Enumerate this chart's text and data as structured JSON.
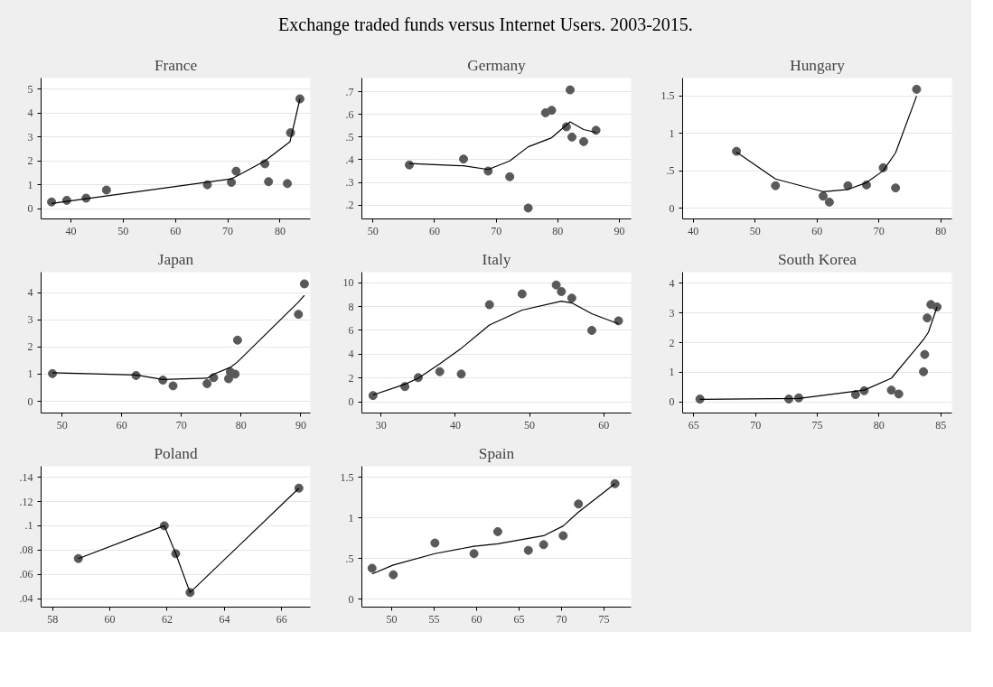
{
  "chart_data": [
    {
      "type": "scatter",
      "title": "France",
      "annotations": [
        "Exchange traded funds versus Internet Users. 2003-2015."
      ],
      "grid": "y",
      "xlim": [
        34.3,
        85.8
      ],
      "ylim": [
        -0.43,
        5.47
      ],
      "xticks": [
        40,
        50,
        60,
        70,
        80
      ],
      "yticks": [
        0,
        1,
        2,
        3,
        4,
        5
      ],
      "series": [
        {
          "marker": "circle",
          "color": "#595959",
          "x": [
            36.3,
            39.2,
            42.9,
            46.8,
            66.1,
            70.7,
            71.6,
            77.1,
            77.8,
            81.4,
            82,
            83.8
          ],
          "values": [
            0.28,
            0.35,
            0.44,
            0.78,
            1.0,
            1.1,
            1.57,
            1.88,
            1.13,
            1.05,
            3.18,
            4.6
          ]
        },
        {
          "type": "line",
          "color": "#000000",
          "x": [
            36.3,
            70.7,
            71.6,
            77.1,
            81.9,
            83.8
          ],
          "values": [
            0.22,
            1.25,
            1.35,
            2.0,
            2.8,
            4.6
          ]
        }
      ]
    },
    {
      "type": "scatter",
      "title": "Germany",
      "grid": "y",
      "xlim": [
        48.2,
        91.9
      ],
      "ylim": [
        0.139,
        0.76
      ],
      "xticks": [
        50,
        60,
        70,
        80,
        90
      ],
      "yticks": [
        {
          "value": 0.2,
          "label": ".2"
        },
        {
          "value": 0.3,
          "label": ".3"
        },
        {
          "value": 0.4,
          "label": ".4"
        },
        {
          "value": 0.5,
          "label": ".5"
        },
        {
          "value": 0.6,
          "label": ".6"
        },
        {
          "value": 0.7,
          "label": ".7"
        }
      ],
      "series": [
        {
          "marker": "circle",
          "color": "#595959",
          "x": [
            55.9,
            64.7,
            68.7,
            72.2,
            75.2,
            78,
            79,
            81.4,
            82,
            82.3,
            84.2,
            86.2
          ],
          "values": [
            0.377,
            0.403,
            0.35,
            0.325,
            0.187,
            0.607,
            0.618,
            0.545,
            0.708,
            0.5,
            0.48,
            0.53
          ]
        },
        {
          "type": "line",
          "color": "#000000",
          "x": [
            55.9,
            64.7,
            68.7,
            72.2,
            75.2,
            79,
            82,
            84.2,
            86.2
          ],
          "values": [
            0.383,
            0.373,
            0.357,
            0.395,
            0.457,
            0.497,
            0.567,
            0.533,
            0.52
          ]
        }
      ]
    },
    {
      "type": "scatter",
      "title": "Hungary",
      "grid": "y",
      "xlim": [
        38.3,
        81.8
      ],
      "ylim": [
        -0.145,
        1.74
      ],
      "xticks": [
        40,
        50,
        60,
        70,
        80
      ],
      "yticks": [
        0,
        {
          "value": 0.5,
          "label": ".5"
        },
        1,
        1.5
      ],
      "series": [
        {
          "marker": "circle",
          "color": "#595959",
          "x": [
            47,
            53.3,
            61,
            62,
            65,
            68,
            70.7,
            72.7,
            76.1
          ],
          "values": [
            0.76,
            0.3,
            0.16,
            0.08,
            0.3,
            0.31,
            0.54,
            0.27,
            1.59
          ]
        },
        {
          "type": "line",
          "color": "#000000",
          "x": [
            47,
            53.3,
            61,
            65,
            68,
            70.7,
            72.7,
            76.1
          ],
          "values": [
            0.75,
            0.39,
            0.22,
            0.25,
            0.34,
            0.5,
            0.74,
            1.5
          ]
        }
      ]
    },
    {
      "type": "scatter",
      "title": "Japan",
      "grid": "y",
      "xlim": [
        46.5,
        91.6
      ],
      "ylim": [
        -0.43,
        4.75
      ],
      "xticks": [
        50,
        60,
        70,
        80,
        90
      ],
      "yticks": [
        0,
        1,
        2,
        3,
        4
      ],
      "series": [
        {
          "marker": "circle",
          "color": "#595959",
          "x": [
            48.4,
            62.4,
            66.9,
            68.6,
            74.3,
            75.4,
            77.9,
            78.2,
            79,
            79.4,
            89.6,
            90.6
          ],
          "values": [
            1.02,
            0.95,
            0.78,
            0.57,
            0.65,
            0.87,
            0.83,
            1.08,
            1.0,
            2.25,
            3.2,
            4.32
          ]
        },
        {
          "type": "line",
          "color": "#000000",
          "x": [
            48.4,
            62.4,
            66.9,
            74.3,
            75.4,
            78.2,
            79.4,
            89.6,
            90.6
          ],
          "values": [
            1.05,
            0.97,
            0.8,
            0.85,
            1.0,
            1.25,
            1.45,
            3.65,
            3.9
          ]
        }
      ]
    },
    {
      "type": "scatter",
      "title": "Italy",
      "grid": "y",
      "xlim": [
        27.4,
        63.7
      ],
      "ylim": [
        -0.91,
        10.87
      ],
      "xticks": [
        30,
        40,
        50,
        60
      ],
      "yticks": [
        0,
        2,
        4,
        6,
        8,
        10
      ],
      "series": [
        {
          "marker": "circle",
          "color": "#595959",
          "x": [
            28.9,
            33.2,
            35,
            37.9,
            40.8,
            44.6,
            49,
            53.6,
            54.3,
            55.7,
            58.4,
            62
          ],
          "values": [
            0.55,
            1.3,
            2.05,
            2.55,
            2.35,
            8.15,
            9.05,
            9.8,
            9.25,
            8.7,
            6.0,
            6.8
          ]
        },
        {
          "type": "line",
          "color": "#000000",
          "x": [
            28.9,
            33.2,
            35,
            37.9,
            40.8,
            44.6,
            49,
            54.3,
            55.7,
            58.4,
            62
          ],
          "values": [
            0.6,
            1.5,
            2.0,
            3.2,
            4.5,
            6.45,
            7.7,
            8.45,
            8.3,
            7.4,
            6.55
          ]
        }
      ]
    },
    {
      "type": "scatter",
      "title": "South Korea",
      "grid": "y",
      "xlim": [
        64.1,
        85.9
      ],
      "ylim": [
        -0.37,
        4.37
      ],
      "xticks": [
        65,
        70,
        75,
        80,
        85
      ],
      "yticks": [
        0,
        1,
        2,
        3,
        4
      ],
      "series": [
        {
          "marker": "circle",
          "color": "#595959",
          "x": [
            65.5,
            72.7,
            73.5,
            78.1,
            78.8,
            81,
            81.6,
            83.6,
            83.7,
            83.9,
            84.2,
            84.7
          ],
          "values": [
            0.1,
            0.1,
            0.14,
            0.25,
            0.38,
            0.4,
            0.27,
            1.02,
            1.6,
            2.83,
            3.28,
            3.2
          ]
        },
        {
          "type": "line",
          "color": "#000000",
          "x": [
            65.5,
            73.5,
            78.8,
            81,
            83.6,
            84,
            84.7
          ],
          "values": [
            0.09,
            0.12,
            0.4,
            0.8,
            2.1,
            2.35,
            3.2
          ]
        }
      ]
    },
    {
      "type": "scatter",
      "title": "Poland",
      "grid": "y",
      "xlim": [
        57.6,
        67.0
      ],
      "ylim": [
        0.033,
        0.149
      ],
      "xticks": [
        58,
        60,
        62,
        64,
        66
      ],
      "yticks": [
        {
          "value": 0.04,
          "label": ".04"
        },
        {
          "value": 0.06,
          "label": ".06"
        },
        {
          "value": 0.08,
          "label": ".08"
        },
        {
          "value": 0.1,
          "label": ".1"
        },
        {
          "value": 0.12,
          "label": ".12"
        },
        {
          "value": 0.14,
          "label": ".14"
        }
      ],
      "series": [
        {
          "marker": "circle",
          "color": "#595959",
          "x": [
            58.9,
            61.9,
            62.3,
            62.8,
            66.6
          ],
          "values": [
            0.073,
            0.1,
            0.077,
            0.045,
            0.131
          ]
        },
        {
          "type": "line",
          "color": "#000000",
          "x": [
            58.9,
            61.9,
            62.3,
            62.8,
            66.6
          ],
          "values": [
            0.073,
            0.1,
            0.077,
            0.045,
            0.131
          ]
        }
      ]
    },
    {
      "type": "scatter",
      "title": "Spain",
      "grid": "y",
      "xlim": [
        46.5,
        78.2
      ],
      "ylim": [
        -0.098,
        1.634
      ],
      "xticks": [
        50,
        55,
        60,
        65,
        70,
        75
      ],
      "yticks": [
        0,
        {
          "value": 0.5,
          "label": ".5"
        },
        1,
        1.5
      ],
      "series": [
        {
          "marker": "circle",
          "color": "#595959",
          "x": [
            47.7,
            50.2,
            55.1,
            59.7,
            62.5,
            66.1,
            67.9,
            70.2,
            72.0,
            76.3
          ],
          "values": [
            0.38,
            0.3,
            0.69,
            0.56,
            0.83,
            0.6,
            0.67,
            0.78,
            1.17,
            1.42
          ]
        },
        {
          "type": "line",
          "color": "#000000",
          "x": [
            47.7,
            50.2,
            55.1,
            59.7,
            62.5,
            67.9,
            70.2,
            72.0,
            76.3
          ],
          "values": [
            0.31,
            0.42,
            0.56,
            0.65,
            0.68,
            0.78,
            0.9,
            1.07,
            1.42
          ]
        }
      ]
    }
  ]
}
